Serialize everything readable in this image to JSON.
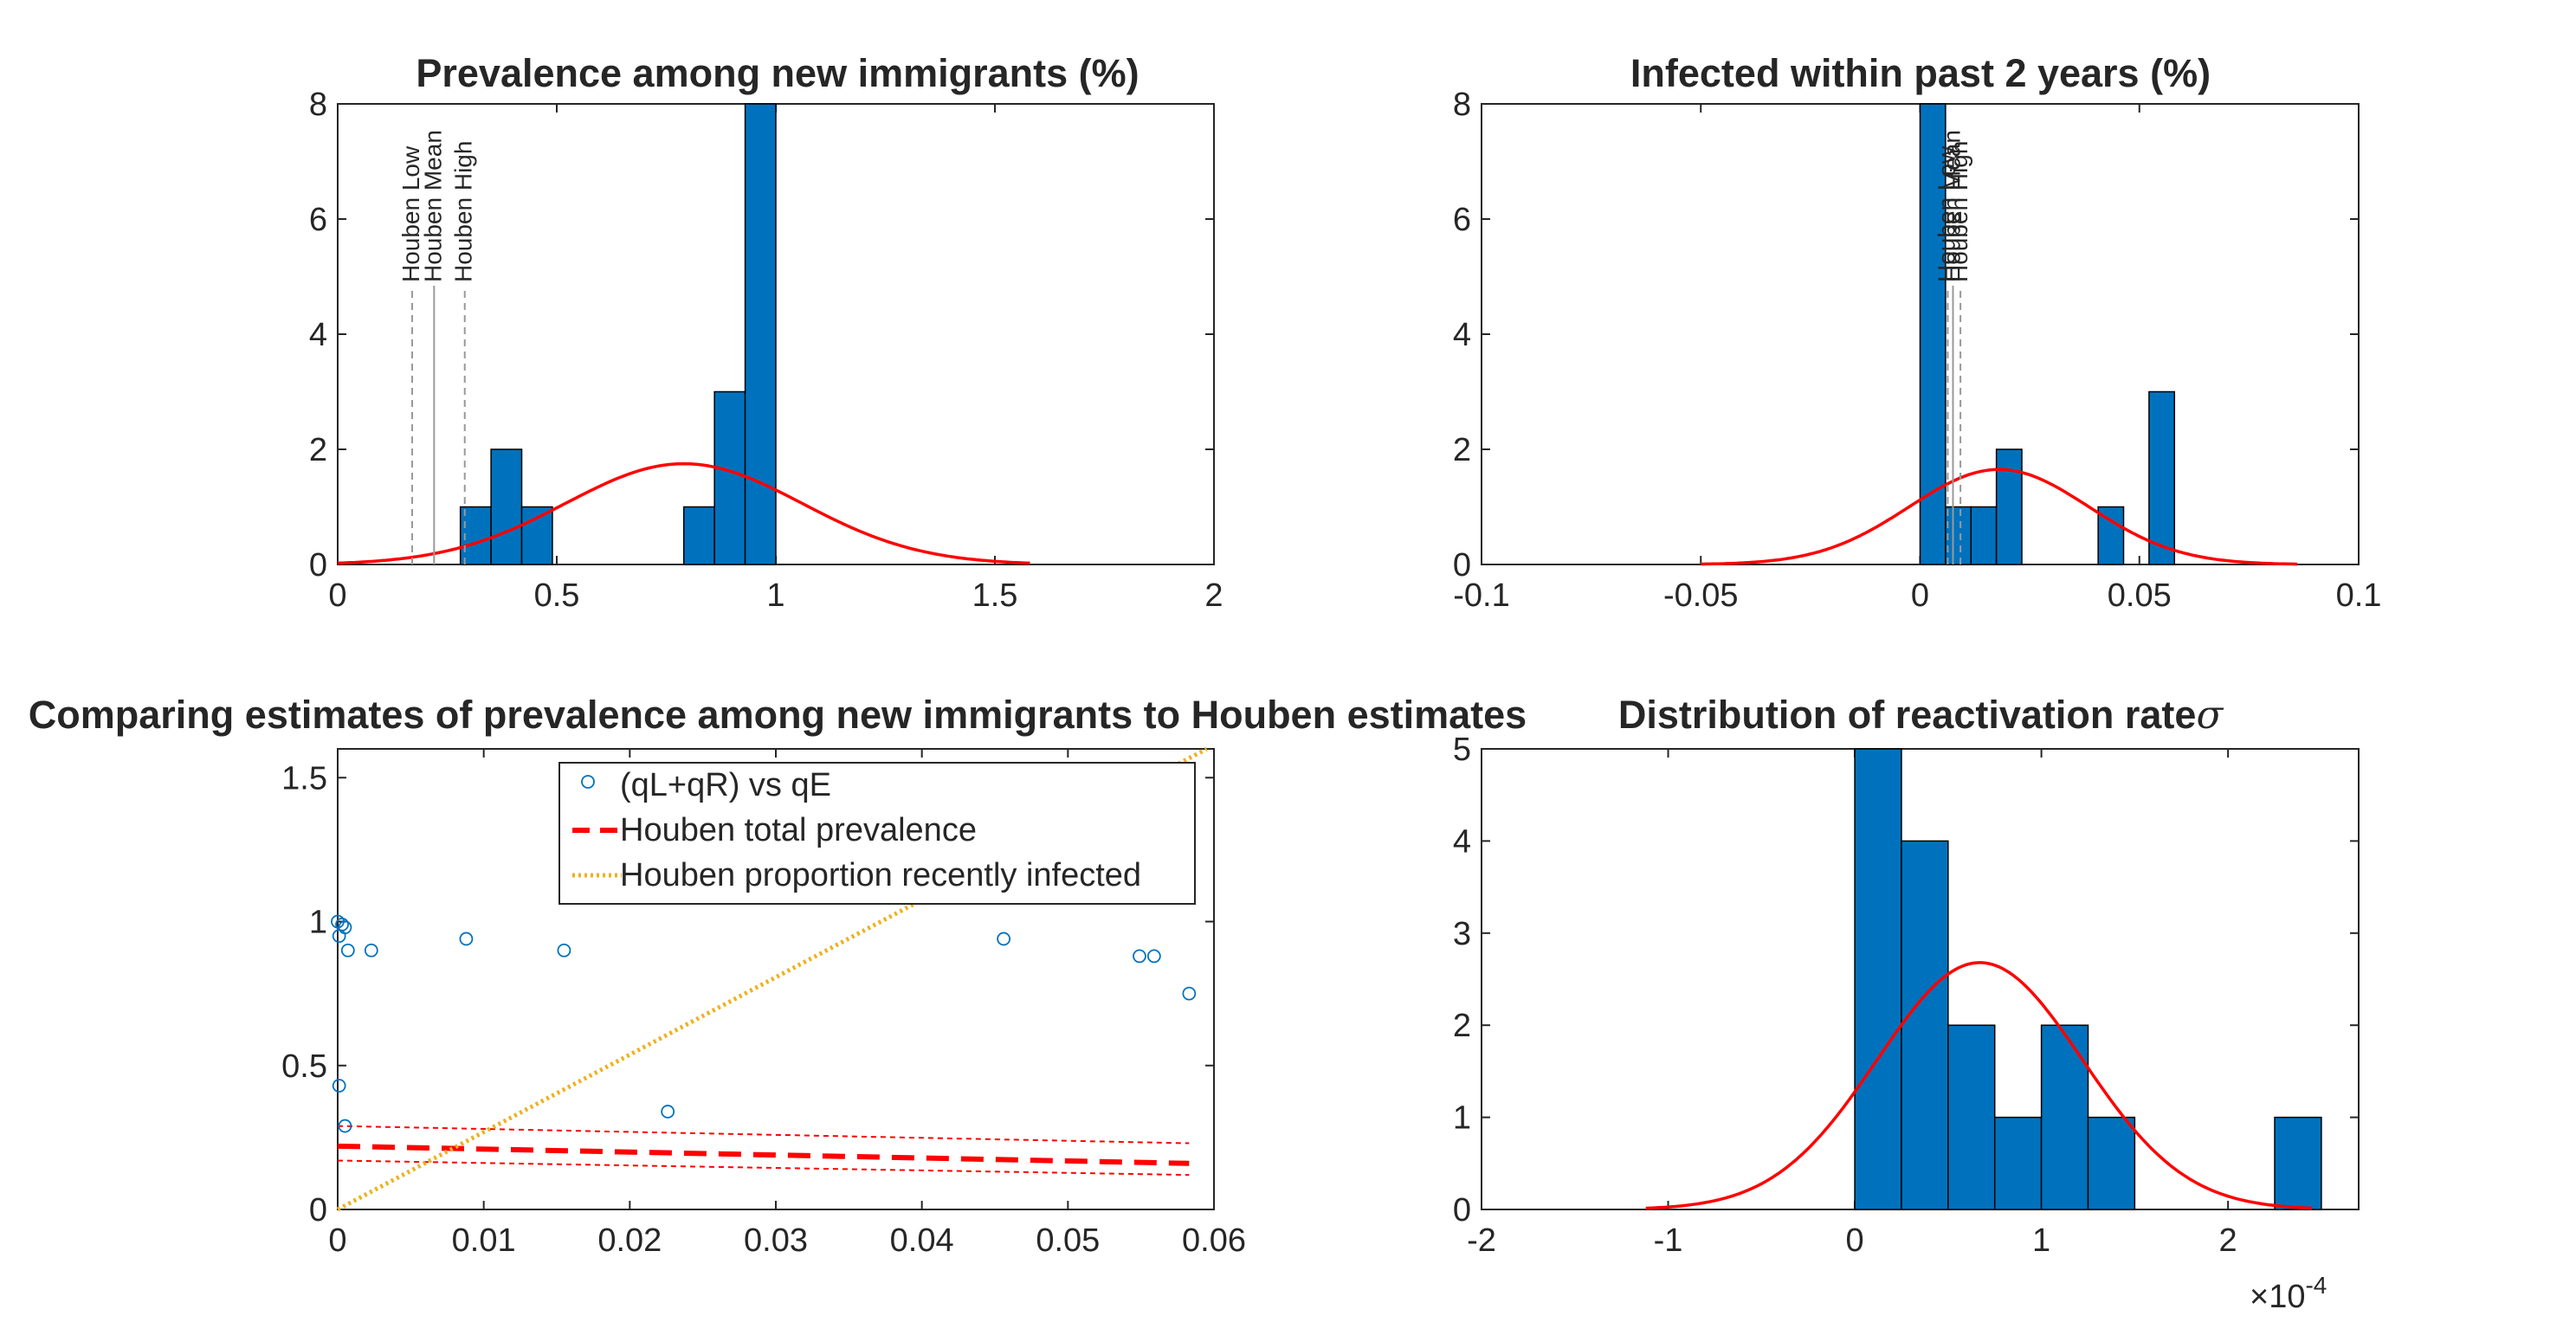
{
  "colors": {
    "bar": "#0072BD",
    "fit": "#FF0000",
    "scatter": "#0072BD",
    "houben_total": "#FF0000",
    "houben_recent": "#EDB120",
    "axis": "#262626"
  },
  "chart_data": [
    {
      "type": "bar",
      "subtype": "histogram",
      "title": "Prevalence among new immigrants (%)",
      "xlim": [
        0,
        2
      ],
      "ylim": [
        0,
        8
      ],
      "xticks": [
        0,
        0.5,
        1,
        1.5,
        2
      ],
      "xtick_labels": [
        "0",
        "0.5",
        "1",
        "1.5",
        "2"
      ],
      "yticks": [
        0,
        2,
        4,
        6,
        8
      ],
      "ytick_labels": [
        "0",
        "2",
        "4",
        "6",
        "8"
      ],
      "bins": [
        {
          "x0": 0.28,
          "x1": 0.35,
          "count": 1
        },
        {
          "x0": 0.35,
          "x1": 0.42,
          "count": 2
        },
        {
          "x0": 0.42,
          "x1": 0.49,
          "count": 1
        },
        {
          "x0": 0.79,
          "x1": 0.86,
          "count": 1
        },
        {
          "x0": 0.86,
          "x1": 0.93,
          "count": 3
        },
        {
          "x0": 0.93,
          "x1": 1.0,
          "count": 8
        }
      ],
      "fit": {
        "type": "normal",
        "mean": 0.79,
        "sd": 0.27,
        "peak": 1.75,
        "range": [
          0,
          1.58
        ]
      },
      "vlines": [
        {
          "x": 0.17,
          "label": "Houben Low",
          "style": "dashed"
        },
        {
          "x": 0.22,
          "label": "Houben Mean",
          "style": "solid"
        },
        {
          "x": 0.29,
          "label": "Houben High",
          "style": "dashed"
        }
      ]
    },
    {
      "type": "bar",
      "subtype": "histogram",
      "title": "Infected within past 2 years (%)",
      "xlim": [
        -0.1,
        0.1
      ],
      "ylim": [
        0,
        8
      ],
      "xticks": [
        -0.1,
        -0.05,
        0,
        0.05,
        0.1
      ],
      "xtick_labels": [
        "-0.1",
        "-0.05",
        "0",
        "0.05",
        "0.1"
      ],
      "yticks": [
        0,
        2,
        4,
        6,
        8
      ],
      "ytick_labels": [
        "0",
        "2",
        "4",
        "6",
        "8"
      ],
      "bins": [
        {
          "x0": 0.0,
          "x1": 0.0058,
          "count": 8
        },
        {
          "x0": 0.0058,
          "x1": 0.0116,
          "count": 1
        },
        {
          "x0": 0.0116,
          "x1": 0.0174,
          "count": 1
        },
        {
          "x0": 0.0174,
          "x1": 0.0232,
          "count": 2
        },
        {
          "x0": 0.0406,
          "x1": 0.0464,
          "count": 1
        },
        {
          "x0": 0.0522,
          "x1": 0.058,
          "count": 3
        }
      ],
      "fit": {
        "type": "normal",
        "mean": 0.018,
        "sd": 0.0205,
        "peak": 1.65,
        "range": [
          -0.05,
          0.086
        ]
      },
      "vlines": [
        {
          "x": 0.0063,
          "label": "Houben Low",
          "style": "dashed"
        },
        {
          "x": 0.0075,
          "label": "Houben Mean",
          "style": "solid"
        },
        {
          "x": 0.0092,
          "label": "Houben High",
          "style": "dashed"
        }
      ]
    },
    {
      "type": "scatter",
      "title": "Comparing estimates of prevalence among new immigrants to Houben estimates",
      "xlim": [
        0,
        0.06
      ],
      "ylim": [
        0,
        1.6
      ],
      "xticks": [
        0,
        0.01,
        0.02,
        0.03,
        0.04,
        0.05,
        0.06
      ],
      "xtick_labels": [
        "0",
        "0.01",
        "0.02",
        "0.03",
        "0.04",
        "0.05",
        "0.06"
      ],
      "yticks": [
        0,
        0.5,
        1,
        1.5
      ],
      "ytick_labels": [
        "0",
        "0.5",
        "1",
        "1.5"
      ],
      "legend": {
        "location": "top-right",
        "entries": [
          "(qL+qR) vs qE",
          "Houben total prevalence",
          "Houben proportion recently infected"
        ]
      },
      "points": [
        {
          "x": 0.0,
          "y": 1.0
        },
        {
          "x": 0.0001,
          "y": 0.95
        },
        {
          "x": 0.0003,
          "y": 0.99
        },
        {
          "x": 0.0005,
          "y": 0.98
        },
        {
          "x": 0.0007,
          "y": 0.9
        },
        {
          "x": 0.0023,
          "y": 0.9
        },
        {
          "x": 0.0001,
          "y": 0.43
        },
        {
          "x": 0.0005,
          "y": 0.29
        },
        {
          "x": 0.0088,
          "y": 0.94
        },
        {
          "x": 0.0155,
          "y": 0.9
        },
        {
          "x": 0.0226,
          "y": 0.34
        },
        {
          "x": 0.0456,
          "y": 0.94
        },
        {
          "x": 0.0549,
          "y": 0.88
        },
        {
          "x": 0.0559,
          "y": 0.88
        },
        {
          "x": 0.0583,
          "y": 0.75
        }
      ],
      "houben_total": {
        "x": [
          0,
          0.0583
        ],
        "mean": [
          0.22,
          0.16
        ],
        "low": [
          0.17,
          0.12
        ],
        "high": [
          0.29,
          0.23
        ]
      },
      "houben_recent": {
        "x": [
          0,
          0.0595
        ],
        "y": [
          0,
          1.6
        ]
      }
    },
    {
      "type": "bar",
      "subtype": "histogram",
      "title": "Distribution of reactivation rate",
      "title_symbol": "σ",
      "xlim": [
        -2,
        2.7
      ],
      "ylim": [
        0,
        5
      ],
      "exponent_label": "×10",
      "exponent_power": "-4",
      "xticks": [
        -2,
        -1,
        0,
        1,
        2
      ],
      "xtick_labels": [
        "-2",
        "-1",
        "0",
        "1",
        "2"
      ],
      "yticks": [
        0,
        1,
        2,
        3,
        4,
        5
      ],
      "ytick_labels": [
        "0",
        "1",
        "2",
        "3",
        "4",
        "5"
      ],
      "bins": [
        {
          "x0": 0.0,
          "x1": 0.25,
          "count": 5
        },
        {
          "x0": 0.25,
          "x1": 0.5,
          "count": 4
        },
        {
          "x0": 0.5,
          "x1": 0.75,
          "count": 2
        },
        {
          "x0": 0.75,
          "x1": 1.0,
          "count": 1
        },
        {
          "x0": 1.0,
          "x1": 1.25,
          "count": 2
        },
        {
          "x0": 1.25,
          "x1": 1.5,
          "count": 1
        },
        {
          "x0": 2.25,
          "x1": 2.5,
          "count": 1
        }
      ],
      "fit": {
        "type": "normal",
        "mean": 0.67,
        "sd": 0.55,
        "peak": 2.68,
        "range": [
          -1.12,
          2.45
        ]
      }
    }
  ]
}
